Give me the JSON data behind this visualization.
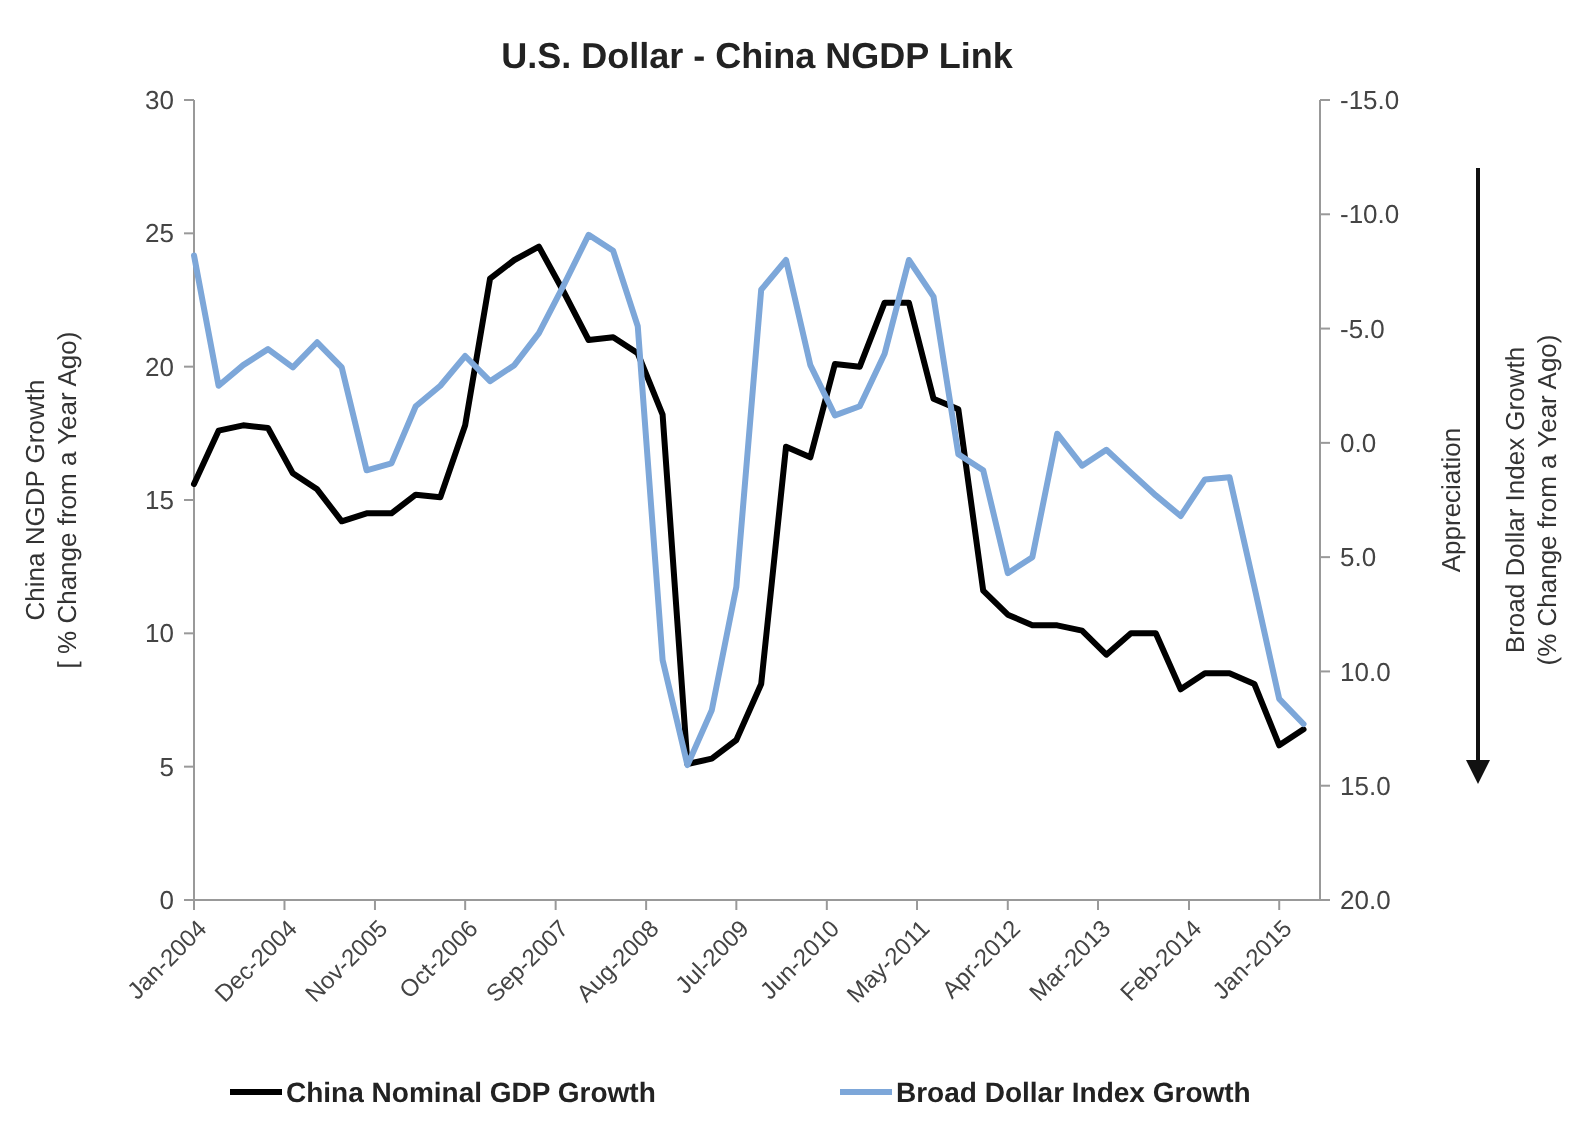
{
  "chart_data": {
    "type": "line",
    "title": "U.S. Dollar - China NGDP Link",
    "ylabel": "China NGDP Growth\n[ % Change from a Year Ago)",
    "y2label": "Broad Dollar Index Growth\n(% Change from a Year Ago)",
    "annotations": [
      "Appreciation"
    ],
    "x": [
      "2004-01",
      "2004-04",
      "2004-07",
      "2004-10",
      "2005-01",
      "2005-04",
      "2005-07",
      "2005-10",
      "2006-01",
      "2006-04",
      "2006-07",
      "2006-10",
      "2007-01",
      "2007-04",
      "2007-07",
      "2007-10",
      "2008-01",
      "2008-04",
      "2008-07",
      "2008-10",
      "2009-01",
      "2009-04",
      "2009-07",
      "2009-10",
      "2010-01",
      "2010-04",
      "2010-07",
      "2010-10",
      "2011-01",
      "2011-04",
      "2011-07",
      "2011-10",
      "2012-01",
      "2012-04",
      "2012-07",
      "2012-10",
      "2013-01",
      "2013-04",
      "2013-07",
      "2013-10",
      "2014-01",
      "2014-04",
      "2014-07",
      "2014-10",
      "2015-01",
      "2015-04"
    ],
    "series": [
      {
        "name": "China Nominal GDP Growth",
        "color": "#000000",
        "values": [
          15.6,
          17.6,
          17.8,
          17.7,
          16.0,
          15.4,
          14.2,
          14.5,
          14.5,
          15.2,
          15.1,
          17.8,
          23.3,
          24.0,
          24.5,
          22.8,
          21.0,
          21.1,
          20.5,
          18.2,
          5.1,
          5.3,
          6.0,
          8.1,
          17.0,
          16.6,
          20.1,
          20.0,
          22.4,
          22.4,
          18.8,
          18.4,
          11.6,
          10.7,
          10.3,
          10.3,
          10.1,
          9.2,
          10.0,
          10.0,
          7.9,
          8.5,
          8.5,
          8.1,
          5.8,
          6.4
        ]
      },
      {
        "name": "Broad Dollar Index Growth",
        "color": "#7da7d9",
        "axis": "y2",
        "values": [
          -8.2,
          -2.5,
          -3.4,
          -4.1,
          -3.3,
          -4.4,
          -3.3,
          1.2,
          0.9,
          -1.6,
          -2.5,
          -3.8,
          -2.7,
          -3.4,
          -4.8,
          -6.9,
          -9.1,
          -8.4,
          -5.1,
          9.5,
          14.1,
          11.7,
          6.3,
          -6.7,
          -8.0,
          -3.4,
          -1.2,
          -1.6,
          -3.9,
          -8.0,
          -6.4,
          0.5,
          1.2,
          5.7,
          5.0,
          -0.4,
          1.0,
          0.3,
          1.3,
          2.3,
          3.2,
          1.6,
          1.5,
          6.3,
          11.2,
          12.3
        ]
      }
    ],
    "xlim": [
      "2004-01",
      "2015-06"
    ],
    "xticks": [
      {
        "value": "2004-01",
        "label": "Jan-2004"
      },
      {
        "value": "2004-12",
        "label": "Dec-2004"
      },
      {
        "value": "2005-11",
        "label": "Nov-2005"
      },
      {
        "value": "2006-10",
        "label": "Oct-2006"
      },
      {
        "value": "2007-09",
        "label": "Sep-2007"
      },
      {
        "value": "2008-08",
        "label": "Aug-2008"
      },
      {
        "value": "2009-07",
        "label": "Jul-2009"
      },
      {
        "value": "2010-06",
        "label": "Jun-2010"
      },
      {
        "value": "2011-05",
        "label": "May-2011"
      },
      {
        "value": "2012-04",
        "label": "Apr-2012"
      },
      {
        "value": "2013-03",
        "label": "Mar-2013"
      },
      {
        "value": "2014-02",
        "label": "Feb-2014"
      },
      {
        "value": "2015-01",
        "label": "Jan-2015"
      }
    ],
    "ylim": [
      0,
      30
    ],
    "yticks": [
      0,
      5,
      10,
      15,
      20,
      25,
      30
    ],
    "y2lim": [
      20,
      -15
    ],
    "y2ticks": [
      {
        "value": -15,
        "label": "-15.0"
      },
      {
        "value": -10,
        "label": "-10.0"
      },
      {
        "value": -5,
        "label": "-5.0"
      },
      {
        "value": 0,
        "label": "0.0"
      },
      {
        "value": 5,
        "label": "5.0"
      },
      {
        "value": 10,
        "label": "10.0"
      },
      {
        "value": 15,
        "label": "15.0"
      },
      {
        "value": 20,
        "label": "20.0"
      }
    ],
    "legend": "bottom",
    "grid": false,
    "marker": "none",
    "line_style": "solid"
  }
}
